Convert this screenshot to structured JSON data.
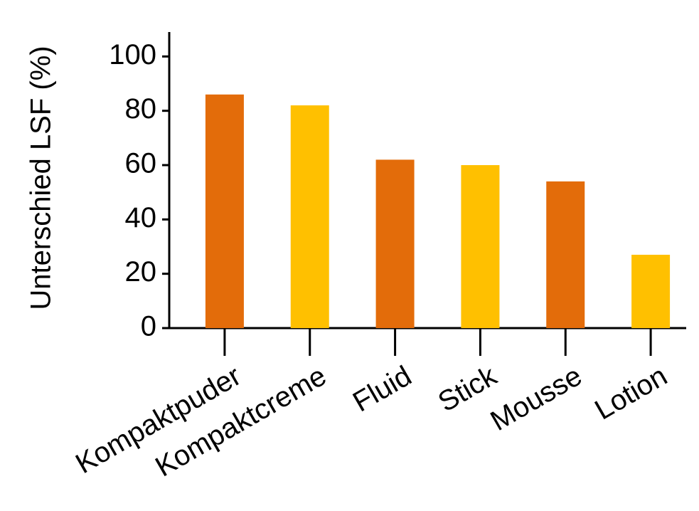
{
  "chart_data": {
    "type": "bar",
    "y_label": "Unterschied LSF (%)",
    "categories": [
      "Kompaktpuder",
      "Kompaktcreme",
      "Fluid",
      "Stick",
      "Mousse",
      "Lotion"
    ],
    "values": [
      86,
      82,
      62,
      60,
      54,
      27
    ],
    "colors": [
      "#e36c0a",
      "#ffc000",
      "#e36c0a",
      "#ffc000",
      "#e36c0a",
      "#ffc000"
    ],
    "ylim": [
      0,
      109
    ],
    "yticks": [
      0,
      20,
      40,
      60,
      80,
      100
    ],
    "grid": false
  }
}
